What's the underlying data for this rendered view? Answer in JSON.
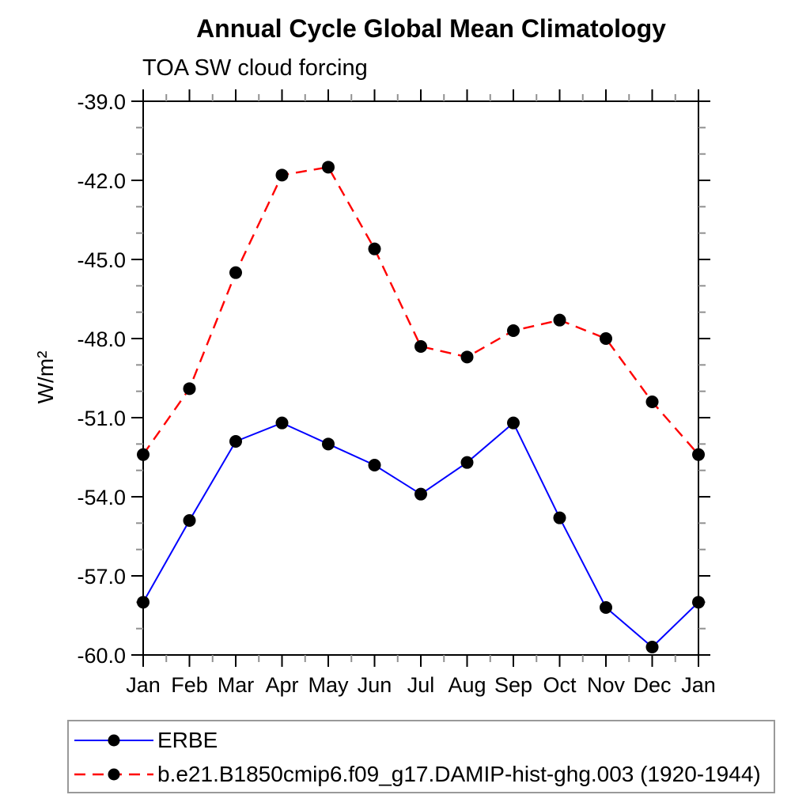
{
  "header": {
    "title": "Annual Cycle Global Mean Climatology",
    "subtitle": "TOA SW cloud forcing"
  },
  "chart_data": {
    "type": "line",
    "title": "Annual Cycle Global Mean Climatology",
    "subtitle": "TOA SW cloud forcing",
    "xlabel": "",
    "ylabel": "W/m²",
    "x_tick_labels": [
      "Jan",
      "Feb",
      "Mar",
      "Apr",
      "May",
      "Jun",
      "Jul",
      "Aug",
      "Sep",
      "Oct",
      "Nov",
      "Dec",
      "Jan"
    ],
    "ylim": [
      -60.0,
      -39.0
    ],
    "y_major_ticks": [
      -39.0,
      -42.0,
      -45.0,
      -48.0,
      -51.0,
      -54.0,
      -57.0,
      -60.0
    ],
    "y_minor_step": 1.0,
    "x_minor_step": 0.5,
    "grid": false,
    "legend_position": "bottom-left-box",
    "axis_color": "#000000",
    "minor_tick_color": "#909090",
    "series": [
      {
        "name": "ERBE",
        "color": "#0000ff",
        "style": "solid",
        "marker": "circle",
        "marker_color": "#000000",
        "values": [
          -58.0,
          -54.9,
          -51.9,
          -51.2,
          -52.0,
          -52.8,
          -53.9,
          -52.7,
          -51.2,
          -54.8,
          -58.2,
          -59.7,
          -58.0
        ]
      },
      {
        "name": "b.e21.B1850cmip6.f09_g17.DAMIP-hist-ghg.003 (1920-1944)",
        "color": "#ff0000",
        "style": "dashed",
        "marker": "circle",
        "marker_color": "#000000",
        "values": [
          -52.4,
          -49.9,
          -45.5,
          -41.8,
          -41.5,
          -44.6,
          -48.3,
          -48.7,
          -47.7,
          -47.3,
          -48.0,
          -50.4,
          -52.4
        ]
      }
    ]
  }
}
